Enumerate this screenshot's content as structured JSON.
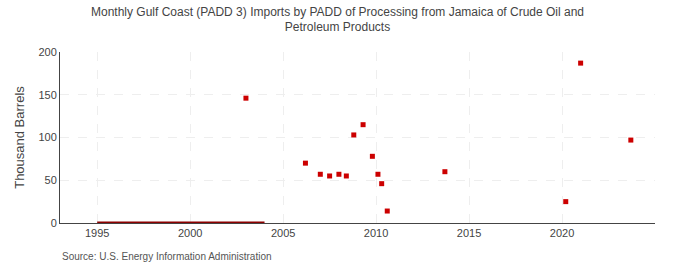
{
  "chart_data": {
    "type": "scatter",
    "title": "Monthly Gulf Coast (PADD 3) Imports by PADD of Processing from Jamaica of Crude Oil and\nPetroleum Products",
    "ylabel": "Thousand Barrels",
    "annotations": [
      "Source: U.S. Energy Information Administration"
    ],
    "xlim": [
      1993,
      2025
    ],
    "ylim": [
      0,
      200
    ],
    "xticks": [
      1995,
      2000,
      2005,
      2010,
      2015,
      2020
    ],
    "yticks": [
      0,
      50,
      100,
      150,
      200
    ],
    "grid": true,
    "series": [
      {
        "type": "line",
        "color": "#8b0000",
        "line_style": "solid",
        "x": [
          1995,
          2004
        ],
        "values": [
          0,
          0
        ]
      },
      {
        "type": "scatter",
        "color": "#cc0000",
        "marker": "square",
        "x": [
          2003.0,
          2006.2,
          2007.0,
          2007.5,
          2008.0,
          2008.4,
          2008.8,
          2009.3,
          2009.8,
          2010.1,
          2010.3,
          2010.6,
          2013.7,
          2020.2,
          2021.0,
          2023.7
        ],
        "values": [
          146,
          70,
          57,
          55,
          57,
          55,
          103,
          115,
          78,
          57,
          46,
          14,
          60,
          25,
          187,
          97
        ]
      }
    ]
  }
}
